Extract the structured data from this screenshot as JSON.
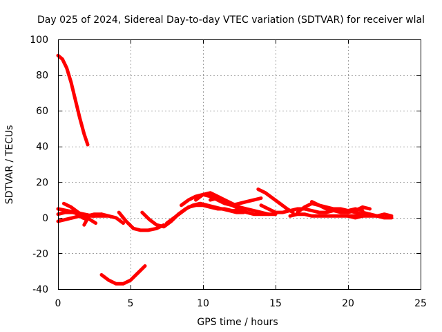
{
  "chart_data": {
    "type": "scatter",
    "title": "Day 025 of 2024, Sidereal Day-to-day VTEC variation (SDTVAR) for receiver wlal",
    "xlabel": "GPS time / hours",
    "ylabel": "SDTVAR / TECUs",
    "xlim": [
      0,
      25
    ],
    "ylim": [
      -40,
      100
    ],
    "xticks": [
      0,
      5,
      10,
      15,
      20,
      25
    ],
    "yticks": [
      -40,
      -20,
      0,
      20,
      40,
      60,
      80,
      100
    ],
    "grid": true,
    "color": "#ff0000",
    "series": [
      {
        "points": [
          [
            0.0,
            91
          ],
          [
            0.3,
            89
          ],
          [
            0.6,
            84
          ],
          [
            0.9,
            76
          ],
          [
            1.2,
            66
          ],
          [
            1.5,
            56
          ],
          [
            1.8,
            47
          ],
          [
            2.05,
            41
          ]
        ]
      },
      {
        "points": [
          [
            0.0,
            -2
          ],
          [
            0.5,
            -1
          ],
          [
            1.0,
            0
          ],
          [
            1.5,
            1
          ],
          [
            2.0,
            1
          ],
          [
            2.5,
            2
          ],
          [
            3.0,
            2
          ],
          [
            3.5,
            1
          ],
          [
            4.0,
            0
          ],
          [
            4.5,
            -3
          ]
        ]
      },
      {
        "points": [
          [
            0.0,
            5
          ],
          [
            0.6,
            4
          ],
          [
            1.2,
            3
          ],
          [
            1.8,
            2
          ],
          [
            2.4,
            1
          ],
          [
            3.0,
            1
          ],
          [
            3.4,
            1
          ]
        ]
      },
      {
        "points": [
          [
            0.0,
            2
          ],
          [
            0.5,
            3
          ],
          [
            1.0,
            3
          ],
          [
            1.5,
            2
          ],
          [
            2.0,
            1
          ],
          [
            2.5,
            1
          ],
          [
            3.0,
            2
          ]
        ]
      },
      {
        "points": [
          [
            0.4,
            8
          ],
          [
            0.9,
            6
          ],
          [
            1.4,
            3
          ],
          [
            1.8,
            1
          ],
          [
            2.2,
            -1
          ],
          [
            2.6,
            -3
          ]
        ]
      },
      {
        "points": [
          [
            1.3,
            2
          ],
          [
            1.7,
            0
          ],
          [
            2.0,
            -1
          ],
          [
            1.8,
            -4
          ]
        ]
      },
      {
        "points": [
          [
            3.0,
            -32
          ],
          [
            3.5,
            -35
          ],
          [
            4.0,
            -37
          ],
          [
            4.5,
            -37
          ],
          [
            5.0,
            -35
          ],
          [
            5.5,
            -31
          ],
          [
            6.0,
            -27
          ]
        ]
      },
      {
        "points": [
          [
            4.2,
            3
          ],
          [
            4.7,
            -2
          ],
          [
            5.2,
            -6
          ],
          [
            5.7,
            -7
          ],
          [
            6.2,
            -7
          ],
          [
            6.8,
            -6
          ],
          [
            7.3,
            -4
          ]
        ]
      },
      {
        "points": [
          [
            5.8,
            3
          ],
          [
            6.3,
            -1
          ],
          [
            6.8,
            -4
          ],
          [
            7.3,
            -5
          ],
          [
            7.8,
            -2
          ],
          [
            8.3,
            2
          ],
          [
            8.8,
            5
          ],
          [
            9.3,
            7
          ],
          [
            9.8,
            8
          ],
          [
            10.3,
            7
          ],
          [
            10.8,
            6
          ],
          [
            11.3,
            5
          ],
          [
            11.8,
            4
          ],
          [
            12.3,
            3
          ],
          [
            12.8,
            3
          ]
        ]
      },
      {
        "points": [
          [
            7.5,
            -3
          ],
          [
            8.0,
            0
          ],
          [
            8.5,
            3
          ],
          [
            9.0,
            6
          ],
          [
            9.5,
            7
          ],
          [
            10.0,
            7
          ],
          [
            10.5,
            6
          ],
          [
            11.0,
            5
          ],
          [
            11.5,
            5
          ],
          [
            12.0,
            4
          ],
          [
            12.5,
            4
          ]
        ]
      },
      {
        "points": [
          [
            8.5,
            7
          ],
          [
            9.0,
            10
          ],
          [
            9.5,
            12
          ],
          [
            10.0,
            13
          ],
          [
            10.5,
            12
          ],
          [
            11.0,
            10
          ],
          [
            11.5,
            8
          ],
          [
            12.0,
            7
          ],
          [
            12.5,
            8
          ],
          [
            13.0,
            9
          ],
          [
            13.5,
            10
          ],
          [
            14.0,
            11
          ]
        ]
      },
      {
        "points": [
          [
            9.5,
            10
          ],
          [
            10.0,
            13
          ],
          [
            10.5,
            14
          ],
          [
            11.0,
            12
          ],
          [
            11.5,
            10
          ],
          [
            12.0,
            8
          ],
          [
            12.5,
            6
          ],
          [
            13.0,
            5
          ],
          [
            13.5,
            4
          ],
          [
            14.0,
            3
          ],
          [
            14.5,
            2
          ],
          [
            15.0,
            2
          ]
        ]
      },
      {
        "points": [
          [
            10.5,
            10
          ],
          [
            11.0,
            11
          ],
          [
            11.5,
            9
          ],
          [
            12.0,
            7
          ],
          [
            12.5,
            5
          ],
          [
            13.0,
            3
          ],
          [
            13.5,
            2
          ],
          [
            14.0,
            2
          ],
          [
            14.5,
            2
          ]
        ]
      },
      {
        "points": [
          [
            13.8,
            16
          ],
          [
            14.3,
            14
          ],
          [
            14.8,
            11
          ],
          [
            15.3,
            8
          ],
          [
            15.8,
            5
          ],
          [
            16.2,
            3
          ]
        ]
      },
      {
        "points": [
          [
            14.0,
            7
          ],
          [
            14.5,
            5
          ],
          [
            15.0,
            3
          ],
          [
            15.5,
            3
          ],
          [
            16.0,
            4
          ],
          [
            16.5,
            5
          ],
          [
            17.0,
            5
          ],
          [
            17.5,
            4
          ],
          [
            18.0,
            3
          ],
          [
            18.5,
            3
          ],
          [
            19.0,
            4
          ],
          [
            19.5,
            4
          ],
          [
            20.0,
            4
          ],
          [
            20.5,
            5
          ],
          [
            21.0,
            4
          ]
        ]
      },
      {
        "points": [
          [
            16.5,
            3
          ],
          [
            17.0,
            6
          ],
          [
            17.5,
            8
          ],
          [
            18.0,
            7
          ],
          [
            18.5,
            6
          ],
          [
            19.0,
            5
          ],
          [
            19.5,
            5
          ],
          [
            20.0,
            4
          ],
          [
            20.5,
            3
          ],
          [
            21.0,
            2
          ]
        ]
      },
      {
        "points": [
          [
            17.5,
            9
          ],
          [
            18.0,
            7
          ],
          [
            18.5,
            5
          ],
          [
            19.0,
            4
          ],
          [
            19.5,
            3
          ],
          [
            20.0,
            3
          ],
          [
            20.5,
            4
          ],
          [
            21.0,
            6
          ],
          [
            21.5,
            5
          ]
        ]
      },
      {
        "points": [
          [
            16.0,
            1
          ],
          [
            16.5,
            2
          ],
          [
            17.0,
            2
          ],
          [
            17.5,
            1
          ],
          [
            18.0,
            1
          ],
          [
            18.5,
            1
          ],
          [
            19.0,
            1
          ],
          [
            19.5,
            1
          ],
          [
            20.0,
            1
          ],
          [
            20.5,
            1
          ],
          [
            21.0,
            1
          ],
          [
            21.5,
            1
          ],
          [
            22.0,
            1
          ]
        ]
      },
      {
        "points": [
          [
            20.0,
            1
          ],
          [
            20.5,
            0
          ],
          [
            21.0,
            1
          ],
          [
            21.5,
            2
          ],
          [
            22.0,
            1
          ],
          [
            22.5,
            0
          ],
          [
            23.0,
            0
          ]
        ]
      },
      {
        "points": [
          [
            21.0,
            3
          ],
          [
            21.5,
            2
          ],
          [
            22.0,
            1
          ],
          [
            22.5,
            2
          ],
          [
            23.0,
            1
          ]
        ]
      }
    ]
  }
}
